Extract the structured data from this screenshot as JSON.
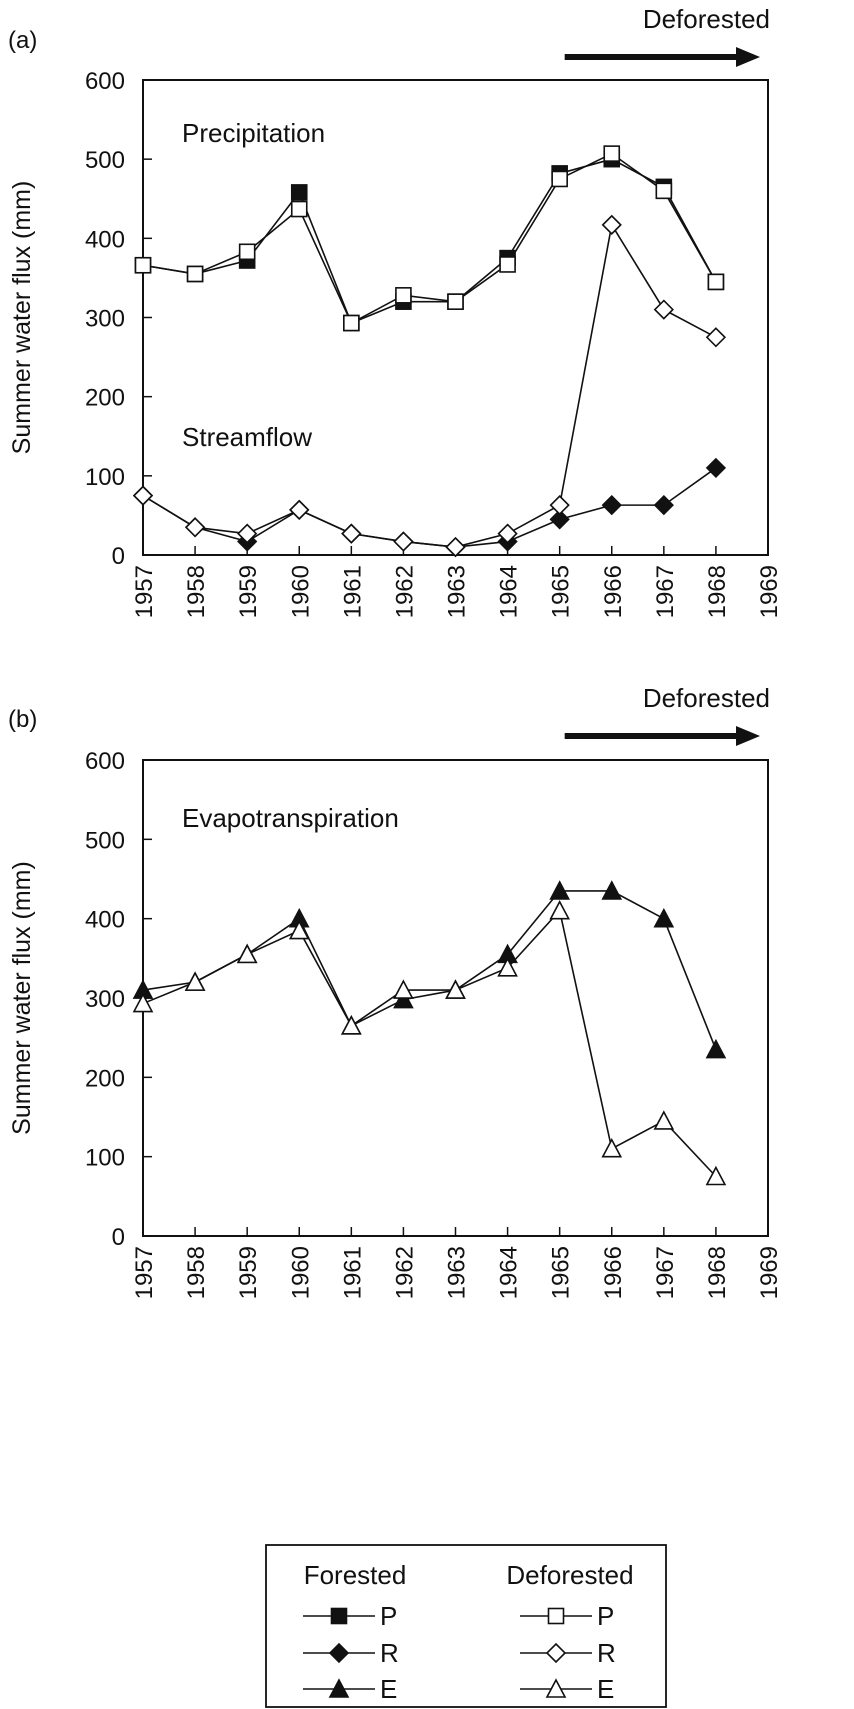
{
  "chart_data": [
    {
      "panel_label": "(a)",
      "type": "line",
      "ylabel": "Summer water flux (mm)",
      "ylim": [
        0,
        600
      ],
      "yticks": [
        "0",
        "100",
        "200",
        "300",
        "400",
        "500",
        "600"
      ],
      "xlim": [
        1957,
        1969
      ],
      "xticks": [
        "1957",
        "1958",
        "1959",
        "1960",
        "1961",
        "1962",
        "1963",
        "1964",
        "1965",
        "1966",
        "1967",
        "1968",
        "1969"
      ],
      "annotations": [
        "Precipitation",
        "Streamflow"
      ],
      "arrow_label": "Deforested",
      "arrow_range": [
        1965,
        1969
      ],
      "x": [
        1957,
        1958,
        1959,
        1960,
        1961,
        1962,
        1963,
        1964,
        1965,
        1966,
        1967,
        1968
      ],
      "series": [
        {
          "variable": "P",
          "group": "Forested",
          "marker": "square",
          "fill": "filled",
          "values": [
            366,
            355,
            372,
            458,
            293,
            320,
            320,
            375,
            482,
            500,
            465,
            345
          ]
        },
        {
          "variable": "P",
          "group": "Deforested",
          "marker": "square",
          "fill": "open",
          "values": [
            366,
            355,
            383,
            437,
            293,
            328,
            320,
            367,
            475,
            507,
            460,
            345
          ]
        },
        {
          "variable": "R",
          "group": "Forested",
          "marker": "diamond",
          "fill": "filled",
          "values": [
            75,
            35,
            17,
            57,
            27,
            17,
            10,
            17,
            45,
            63,
            63,
            110
          ]
        },
        {
          "variable": "R",
          "group": "Deforested",
          "marker": "diamond",
          "fill": "open",
          "values": [
            75,
            35,
            27,
            57,
            27,
            17,
            10,
            27,
            63,
            417,
            310,
            275
          ]
        }
      ]
    },
    {
      "panel_label": "(b)",
      "type": "line",
      "ylabel": "Summer water flux (mm)",
      "ylim": [
        0,
        600
      ],
      "yticks": [
        "0",
        "100",
        "200",
        "300",
        "400",
        "500",
        "600"
      ],
      "xlim": [
        1957,
        1969
      ],
      "xticks": [
        "1957",
        "1958",
        "1959",
        "1960",
        "1961",
        "1962",
        "1963",
        "1964",
        "1965",
        "1966",
        "1967",
        "1968",
        "1969"
      ],
      "annotations": [
        "Evapotranspiration"
      ],
      "arrow_label": "Deforested",
      "arrow_range": [
        1965,
        1969
      ],
      "x": [
        1957,
        1958,
        1959,
        1960,
        1961,
        1962,
        1963,
        1964,
        1965,
        1966,
        1967,
        1968
      ],
      "series": [
        {
          "variable": "E",
          "group": "Forested",
          "marker": "triangle",
          "fill": "filled",
          "values": [
            310,
            320,
            355,
            400,
            265,
            298,
            310,
            355,
            435,
            435,
            400,
            235
          ]
        },
        {
          "variable": "E",
          "group": "Deforested",
          "marker": "triangle",
          "fill": "open",
          "values": [
            293,
            320,
            355,
            385,
            265,
            310,
            310,
            338,
            410,
            110,
            145,
            75
          ]
        }
      ]
    }
  ],
  "legend": {
    "headers": [
      "Forested",
      "Deforested"
    ],
    "rows": [
      {
        "marker": "square",
        "forested_label": "P",
        "deforested_label": "P"
      },
      {
        "marker": "diamond",
        "forested_label": "R",
        "deforested_label": "R"
      },
      {
        "marker": "triangle",
        "forested_label": "E",
        "deforested_label": "E"
      }
    ]
  }
}
